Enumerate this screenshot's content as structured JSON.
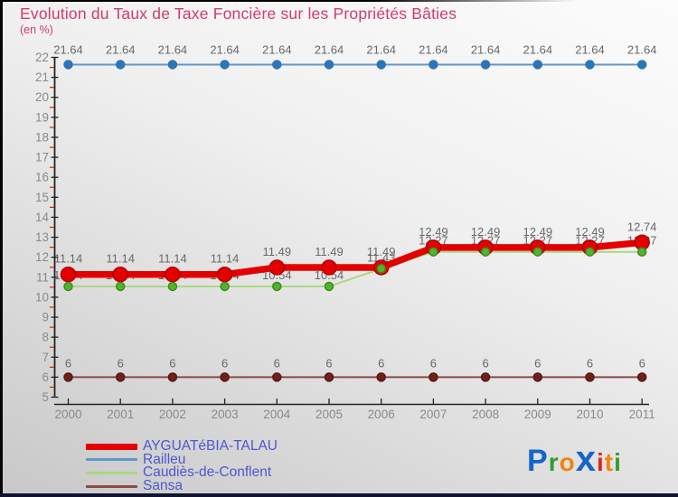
{
  "header": {
    "title": "Evolution du Taux de Taxe Foncière sur les Propriétés Bâties",
    "subtitle": "(en %)",
    "title_color": "#d23b6b"
  },
  "chart_data": {
    "type": "line",
    "title": "Evolution du Taux de Taxe Foncière sur les Propriétés Bâties",
    "subtitle": "(en %)",
    "x": [
      2000,
      2001,
      2002,
      2003,
      2004,
      2005,
      2006,
      2007,
      2008,
      2009,
      2010,
      2011
    ],
    "x_tick_labels": [
      "2000",
      "2001",
      "2002",
      "2003",
      "2004",
      "2005",
      "2006",
      "2007",
      "2008",
      "2009",
      "2010",
      "2011"
    ],
    "xlabel": "",
    "ylabel": "",
    "ylim": [
      5,
      22
    ],
    "ytick_step": 1,
    "ytick_minor_step": 0.5,
    "grid": false,
    "legend_position": "bottom-left",
    "axis_color": "#222222",
    "minor_tick_color": "#cc2200",
    "tick_label_color": "#8a8a8a",
    "point_label_color": "#686868",
    "series": [
      {
        "name": "AYGUATéBIA-TALAU",
        "values": [
          11.14,
          11.14,
          11.14,
          11.14,
          11.49,
          11.49,
          11.49,
          12.49,
          12.49,
          12.49,
          12.49,
          12.74
        ],
        "point_labels": [
          "11.14",
          "11.14",
          "11.14",
          "11.14",
          "11.49",
          "11.49",
          "11.49",
          "12.49",
          "12.49",
          "12.49",
          "12.49",
          "12.74"
        ],
        "line_color": "#e30000",
        "marker_color": "#e30000",
        "marker_stroke": "#b30000",
        "line_width": 7.5,
        "marker_radius": 8,
        "label_offset": 13,
        "render_order": 3,
        "markers_last": false
      },
      {
        "name": "Railleu",
        "values": [
          21.64,
          21.64,
          21.64,
          21.64,
          21.64,
          21.64,
          21.64,
          21.64,
          21.64,
          21.64,
          21.64,
          21.64
        ],
        "point_labels": [
          "21.64",
          "21.64",
          "21.64",
          "21.64",
          "21.64",
          "21.64",
          "21.64",
          "21.64",
          "21.64",
          "21.64",
          "21.64",
          "21.64"
        ],
        "line_color": "#5b9ac9",
        "marker_color": "#2e75b6",
        "marker_stroke": "#2e75b6",
        "line_width": 2,
        "marker_radius": 4.5,
        "label_offset": 12,
        "render_order": 1,
        "markers_last": false
      },
      {
        "name": "Caudiès-de-Conflent",
        "values": [
          10.54,
          10.54,
          10.54,
          10.54,
          10.54,
          10.54,
          11.43,
          12.27,
          12.27,
          12.27,
          12.27,
          12.27
        ],
        "point_labels": [
          "10.54",
          "10.54",
          "10.54",
          "10.54",
          "10.54",
          "10.54",
          "11.43",
          "12.27",
          "12.27",
          "12.27",
          "12.27",
          "12.27"
        ],
        "line_color": "#a9d884",
        "marker_color": "#54b32c",
        "marker_stroke": "#3c8c1e",
        "line_width": 2,
        "marker_radius": 4.5,
        "label_offset": 8,
        "render_order": 2,
        "markers_last": true
      },
      {
        "name": "Sansa",
        "values": [
          6,
          6,
          6,
          6,
          6,
          6,
          6,
          6,
          6,
          6,
          6,
          6
        ],
        "point_labels": [
          "6",
          "6",
          "6",
          "6",
          "6",
          "6",
          "6",
          "6",
          "6",
          "6",
          "6",
          "6"
        ],
        "line_color": "#8b4a42",
        "marker_color": "#6e211c",
        "marker_stroke": "#5a1713",
        "line_width": 2,
        "marker_radius": 4.5,
        "label_offset": 11,
        "render_order": 0,
        "markers_last": false
      }
    ]
  },
  "legend": {
    "text_color": "#4f57cf"
  },
  "branding": {
    "name": "Proxiti",
    "letters": [
      {
        "ch": "P",
        "color": "#1565c8",
        "size": 34
      },
      {
        "ch": "r",
        "color": "#2f9e2f",
        "size": 28
      },
      {
        "ch": "o",
        "color": "#f28411",
        "size": 28
      },
      {
        "ch": "x",
        "color": "#1565c8",
        "size": 40
      },
      {
        "ch": "i",
        "color": "#e2251b",
        "size": 28
      },
      {
        "ch": "t",
        "color": "#f28411",
        "size": 28
      },
      {
        "ch": "i",
        "color": "#2f9e2f",
        "size": 28
      }
    ]
  },
  "footer": {
    "bar_color": "#11142f"
  }
}
